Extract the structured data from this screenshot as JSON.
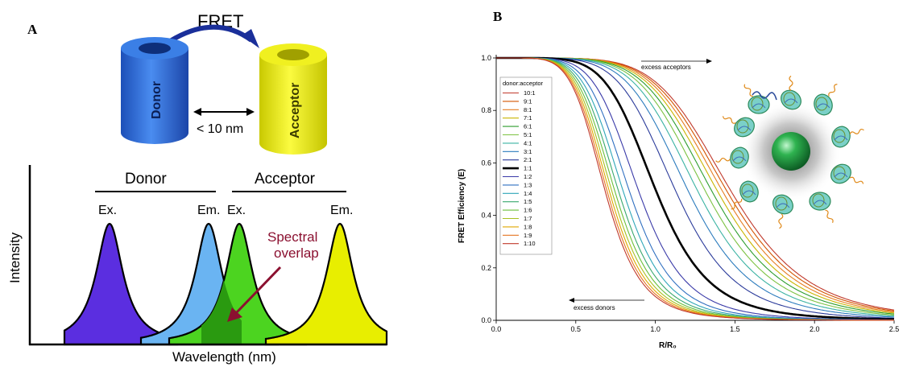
{
  "panel_a": {
    "label": "A",
    "fret_label": "FRET",
    "donor_cylinder_label": "Donor",
    "acceptor_cylinder_label": "Acceptor",
    "distance_label": "< 10 nm",
    "donor_header": "Donor",
    "acceptor_header": "Acceptor",
    "peak_labels": [
      "Ex.",
      "Em.",
      "Ex.",
      "Em."
    ],
    "overlap_label_line1": "Spectral",
    "overlap_label_line2": "overlap",
    "y_axis_label": "Intensity",
    "x_axis_label": "Wavelength (nm)",
    "colors": {
      "donor_excitation": "#5b2ee0",
      "donor_emission": "#6ab4f2",
      "acceptor_excitation": "#4cd420",
      "acceptor_emission": "#e8ee00",
      "overlap": "#2a9a10",
      "fret_arrow": "#1a2f9a",
      "overlap_arrow": "#8b1030",
      "donor_cylinder": "#2a6bd6",
      "acceptor_cylinder": "#eeee10"
    }
  },
  "panel_b": {
    "label": "B",
    "legend_title": "donor:acceptor",
    "top_annotation": "excess acceptors",
    "bottom_annotation": "excess donors",
    "nanoparticle_color": "#1f9a3c"
  },
  "chart_data": {
    "type": "line",
    "title": "",
    "xlabel": "R/R₀",
    "ylabel": "FRET Efficiency (E)",
    "xlim": [
      0.0,
      2.5
    ],
    "ylim": [
      0.0,
      1.0
    ],
    "x_ticks": [
      "0.0",
      "0.5",
      "1.0",
      "1.5",
      "2.0",
      "2.5"
    ],
    "y_ticks": [
      "0.0",
      "0.2",
      "0.4",
      "0.6",
      "0.8",
      "1.0"
    ],
    "grid": false,
    "legend_position": "top-left",
    "series": [
      {
        "name": "10:1",
        "ratio": 10.0,
        "color": "#c0392b"
      },
      {
        "name": "9:1",
        "ratio": 9.0,
        "color": "#d35400"
      },
      {
        "name": "8:1",
        "ratio": 8.0,
        "color": "#e67e22"
      },
      {
        "name": "7:1",
        "ratio": 7.0,
        "color": "#c9b400"
      },
      {
        "name": "6:1",
        "ratio": 6.0,
        "color": "#2e9e2e"
      },
      {
        "name": "5:1",
        "ratio": 5.0,
        "color": "#7cc242"
      },
      {
        "name": "4:1",
        "ratio": 4.0,
        "color": "#3bb3a3"
      },
      {
        "name": "3:1",
        "ratio": 3.0,
        "color": "#2b7bbd"
      },
      {
        "name": "2:1",
        "ratio": 2.0,
        "color": "#2a3a9a"
      },
      {
        "name": "1:1",
        "ratio": 1.0,
        "color": "#000000",
        "bold": true
      },
      {
        "name": "1:2",
        "ratio": 0.5,
        "color": "#3a3aa8"
      },
      {
        "name": "1:3",
        "ratio": 0.3333,
        "color": "#2f6fc0"
      },
      {
        "name": "1:4",
        "ratio": 0.25,
        "color": "#2fa6b8"
      },
      {
        "name": "1:5",
        "ratio": 0.2,
        "color": "#3aa86e"
      },
      {
        "name": "1:6",
        "ratio": 0.1667,
        "color": "#6bbf3a"
      },
      {
        "name": "1:7",
        "ratio": 0.1429,
        "color": "#a8c020"
      },
      {
        "name": "1:8",
        "ratio": 0.125,
        "color": "#e0a800"
      },
      {
        "name": "1:9",
        "ratio": 0.1111,
        "color": "#e67522"
      },
      {
        "name": "1:10",
        "ratio": 0.1,
        "color": "#c0392b"
      }
    ]
  }
}
